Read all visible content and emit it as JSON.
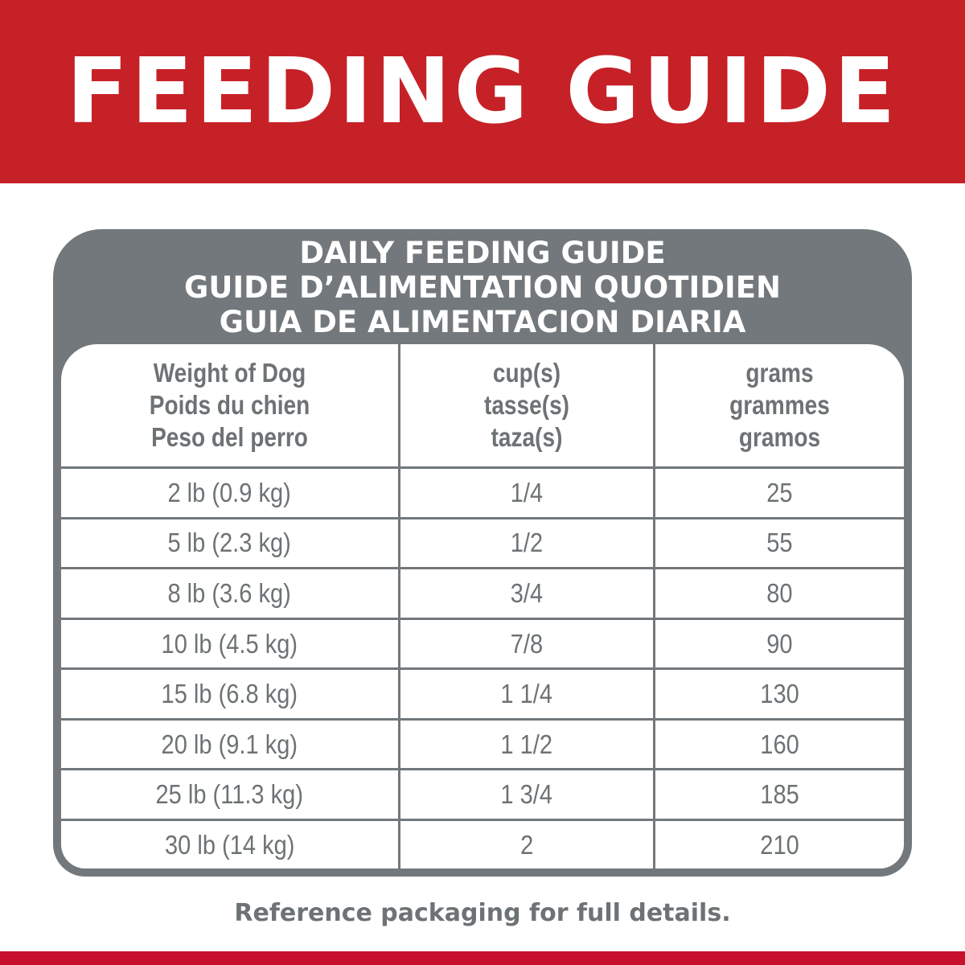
{
  "banner": {
    "title": "FEEDING GUIDE",
    "color": "#c62127"
  },
  "panel": {
    "titles": [
      "DAILY FEEDING GUIDE",
      "GUIDE D’ALIMENTATION QUOTIDIEN",
      "GUIA DE ALIMENTACION DIARIA"
    ],
    "color": "#72787b"
  },
  "table": {
    "headers": [
      [
        "Weight of Dog",
        "Poids du chien",
        "Peso del perro"
      ],
      [
        "cup(s)",
        "tasse(s)",
        "taza(s)"
      ],
      [
        "grams",
        "grammes",
        "gramos"
      ]
    ],
    "rows": [
      [
        "2 lb (0.9 kg)",
        "1/4",
        "25"
      ],
      [
        "5 lb (2.3 kg)",
        "1/2",
        "55"
      ],
      [
        "8 lb (3.6 kg)",
        "3/4",
        "80"
      ],
      [
        "10 lb (4.5 kg)",
        "7/8",
        "90"
      ],
      [
        "15 lb (6.8 kg)",
        "1 1/4",
        "130"
      ],
      [
        "20 lb (9.1 kg)",
        "1 1/2",
        "160"
      ],
      [
        "25 lb (11.3 kg)",
        "1 3/4",
        "185"
      ],
      [
        "30 lb (14 kg)",
        "2",
        "210"
      ]
    ]
  },
  "note": "Reference packaging for full details."
}
